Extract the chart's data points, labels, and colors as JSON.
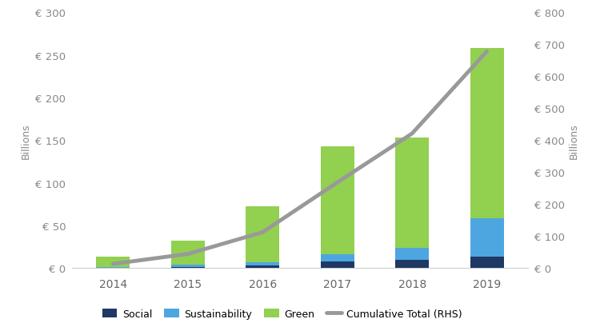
{
  "years": [
    2014,
    2015,
    2016,
    2017,
    2018,
    2019
  ],
  "social": [
    0.5,
    1.5,
    3.0,
    8.0,
    10.0,
    13.0
  ],
  "sustainability": [
    0.5,
    2.0,
    4.0,
    8.0,
    14.0,
    45.0
  ],
  "green": [
    12.0,
    29.0,
    65.0,
    127.0,
    129.0,
    200.0
  ],
  "cumulative": [
    13.0,
    44.0,
    112.0,
    268.0,
    421.0,
    678.0
  ],
  "social_color": "#1f3864",
  "sustainability_color": "#4da6e0",
  "green_color": "#92d050",
  "cumulative_color": "#999999",
  "ylim_left": [
    0,
    300
  ],
  "ylim_right": [
    0,
    800
  ],
  "yticks_left": [
    0,
    50,
    100,
    150,
    200,
    250,
    300
  ],
  "yticks_right": [
    0,
    100,
    200,
    300,
    400,
    500,
    600,
    700,
    800
  ],
  "ylabel_left": "Billions",
  "ylabel_right": "Billions",
  "background_color": "#ffffff",
  "legend_labels": [
    "Social",
    "Sustainability",
    "Green",
    "Cumulative Total (RHS)"
  ],
  "tick_color": "#aaaaaa",
  "label_color": "#aaaaaa",
  "bar_width": 0.45
}
